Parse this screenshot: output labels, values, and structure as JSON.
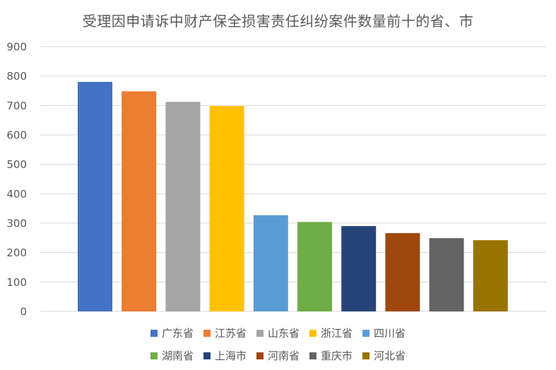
{
  "chart_data": {
    "type": "bar",
    "title": "受理因申请诉中财产保全损害责任纠纷案件数量前十的省、市",
    "categories": [
      "广东省",
      "江苏省",
      "山东省",
      "浙江省",
      "四川省",
      "湖南省",
      "上海市",
      "河南省",
      "重庆市",
      "河北省"
    ],
    "values": [
      780,
      748,
      712,
      698,
      327,
      304,
      290,
      266,
      249,
      242
    ],
    "colors": [
      "#4472C4",
      "#ED7D31",
      "#A5A5A5",
      "#FFC000",
      "#5B9BD5",
      "#70AD47",
      "#264478",
      "#9E480E",
      "#636363",
      "#997300"
    ],
    "ylim": [
      0,
      900
    ],
    "yticks": [
      0,
      100,
      200,
      300,
      400,
      500,
      600,
      700,
      800,
      900
    ],
    "xlabel": "",
    "ylabel": "",
    "grid": true,
    "legend_position": "bottom"
  }
}
